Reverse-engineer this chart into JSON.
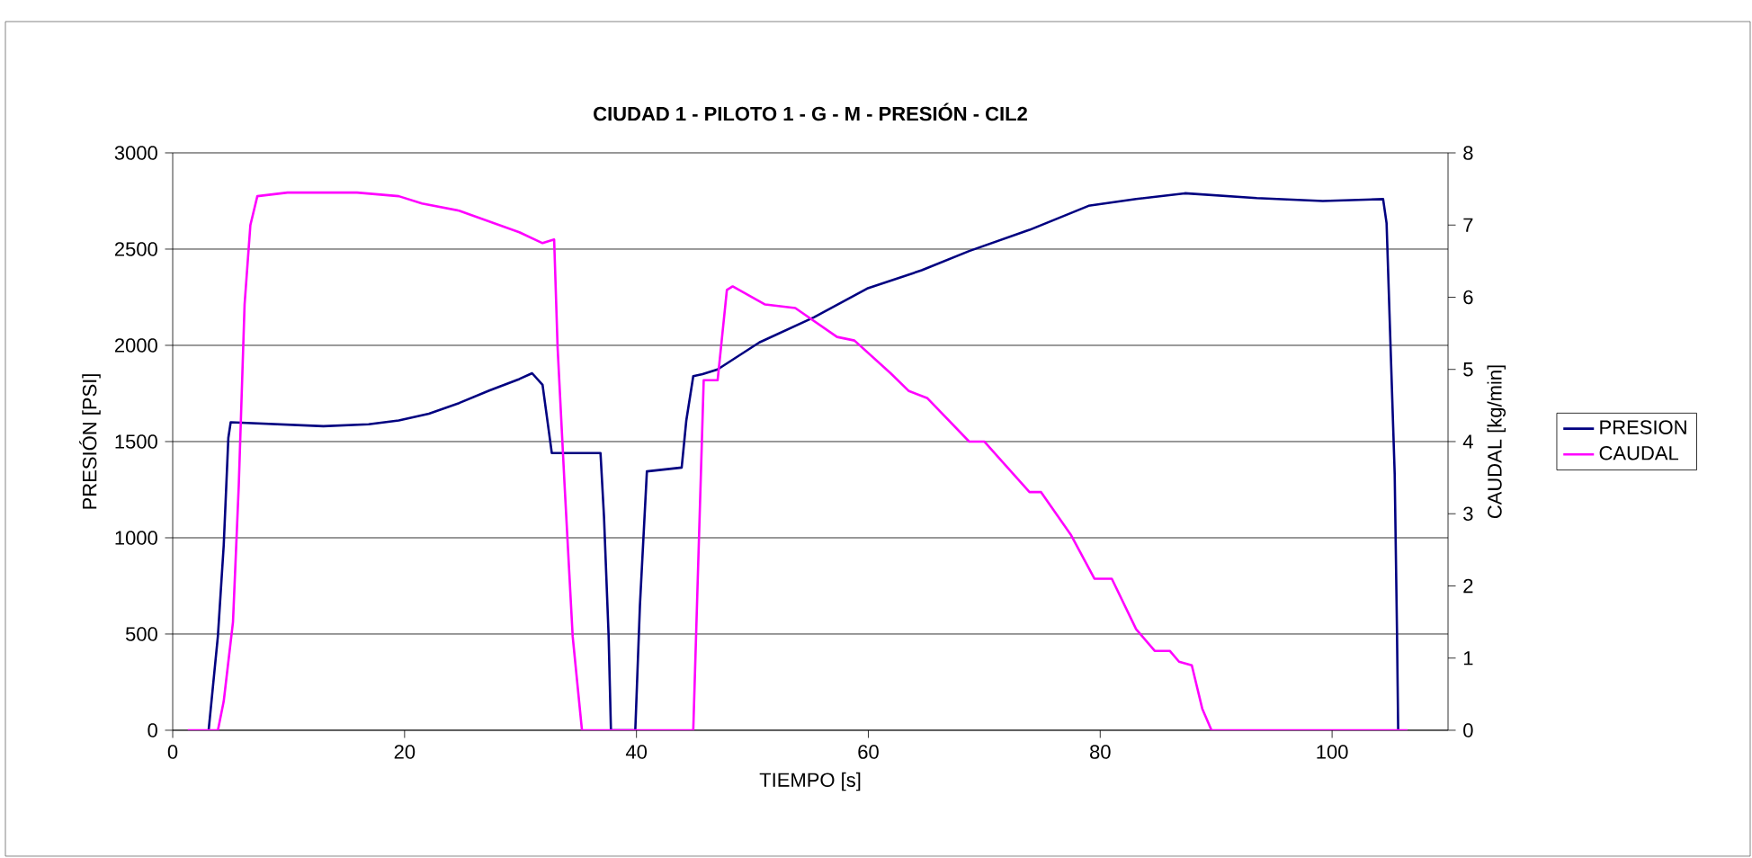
{
  "chart_data": {
    "type": "line",
    "title": "CIUDAD 1 - PILOTO 1 - G - M - PRESIÓN - CIL2",
    "xlabel": "TIEMPO [s]",
    "ylabel": "PRESIÓN [PSI]",
    "y2label": "CAUDAL [kg/min]",
    "xlim": [
      0,
      110
    ],
    "xticks": [
      0,
      20,
      40,
      60,
      80,
      100
    ],
    "ylim": [
      0,
      3000
    ],
    "yticks": [
      0,
      500,
      1000,
      1500,
      2000,
      2500,
      3000
    ],
    "y2lim": [
      0,
      8
    ],
    "y2ticks": [
      0,
      1,
      2,
      3,
      4,
      5,
      6,
      7,
      8
    ],
    "grid": "y",
    "legend": "right",
    "line_style": "solid",
    "marker": "none",
    "series": [
      {
        "name": "PRESION",
        "color": "#000080",
        "x": [
          3.1,
          3.9,
          4.4,
          4.8,
          5.0,
          7.0,
          13.0,
          16.9,
          19.5,
          22.1,
          24.7,
          27.3,
          29.9,
          31.0,
          31.9,
          32.7,
          36.9,
          37.2,
          37.6,
          37.8,
          39.9,
          40.3,
          40.9,
          43.9,
          44.3,
          44.9,
          45.7,
          47.0,
          50.6,
          55.3,
          59.9,
          64.6,
          68.7,
          73.9,
          79.0,
          83.1,
          87.3,
          93.5,
          99.2,
          104.4,
          104.7,
          105.0,
          105.4,
          105.6,
          105.7
        ],
        "values": [
          0,
          490,
          960,
          1520,
          1600,
          1595,
          1580,
          1590,
          1610,
          1645,
          1700,
          1765,
          1825,
          1855,
          1795,
          1440,
          1440,
          1110,
          490,
          0,
          0,
          650,
          1345,
          1365,
          1610,
          1840,
          1850,
          1875,
          2015,
          2145,
          2295,
          2390,
          2490,
          2600,
          2725,
          2760,
          2790,
          2765,
          2750,
          2760,
          2635,
          2075,
          1330,
          505,
          0
        ]
      },
      {
        "name": "CAUDAL",
        "color": "#ff00ff",
        "axis": "y2",
        "x": [
          1.3,
          3.9,
          4.4,
          5.2,
          5.7,
          6.2,
          6.7,
          7.3,
          9.9,
          15.9,
          19.5,
          21.5,
          24.7,
          27.3,
          29.9,
          31.9,
          32.9,
          33.2,
          33.8,
          34.5,
          35.3,
          44.9,
          45.4,
          45.8,
          47.0,
          47.8,
          48.3,
          51.1,
          53.7,
          57.3,
          58.8,
          61.9,
          63.5,
          65.1,
          68.7,
          70.0,
          73.9,
          74.9,
          77.5,
          79.5,
          81.0,
          83.1,
          84.7,
          86.0,
          86.8,
          87.9,
          88.8,
          89.6,
          106.5
        ],
        "values": [
          0,
          0,
          0.4,
          1.5,
          3.4,
          5.9,
          7.0,
          7.4,
          7.45,
          7.45,
          7.4,
          7.3,
          7.2,
          7.05,
          6.9,
          6.75,
          6.8,
          5.3,
          3.4,
          1.3,
          0,
          0,
          2.7,
          4.85,
          4.85,
          6.1,
          6.15,
          5.9,
          5.85,
          5.45,
          5.4,
          4.95,
          4.7,
          4.6,
          4.0,
          4.0,
          3.3,
          3.3,
          2.7,
          2.1,
          2.1,
          1.4,
          1.1,
          1.1,
          0.95,
          0.9,
          0.3,
          0,
          0
        ]
      }
    ]
  }
}
